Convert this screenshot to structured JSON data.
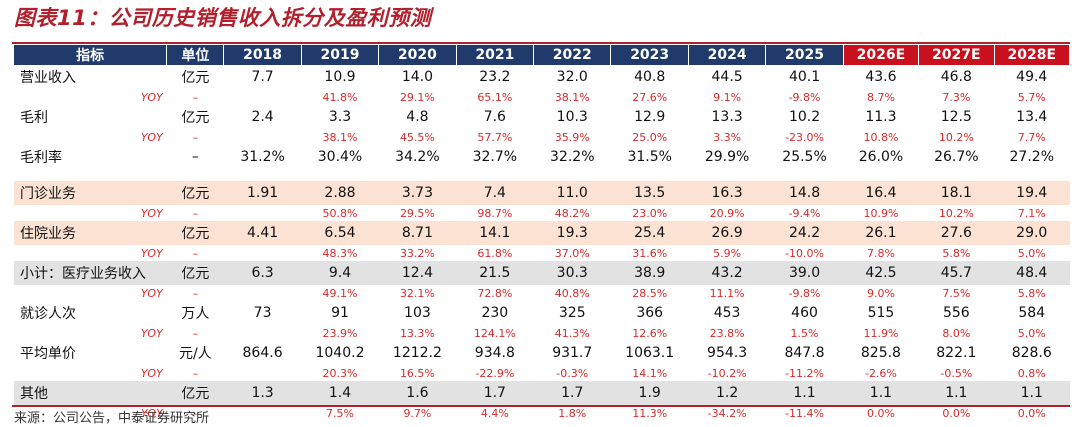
{
  "title": "图表11：公司历史销售收入拆分及盈利预测",
  "source": "来源：公司公告，中泰证券研究所",
  "header": {
    "indicator": "指标",
    "unit": "单位",
    "years": [
      "2018",
      "2019",
      "2020",
      "2021",
      "2022",
      "2023",
      "2024",
      "2025",
      "2026E",
      "2027E",
      "2028E"
    ]
  },
  "rows": {
    "revenue": {
      "label": "营业收入",
      "unit": "亿元",
      "values": [
        "7.7",
        "10.9",
        "14.0",
        "23.2",
        "32.0",
        "40.8",
        "44.5",
        "40.1",
        "43.6",
        "46.8",
        "49.4"
      ]
    },
    "revenue_yoy": {
      "label": "YOY",
      "unit": "–",
      "values": [
        "",
        "41.8%",
        "29.1%",
        "65.1%",
        "38.1%",
        "27.6%",
        "9.1%",
        "-9.8%",
        "8.7%",
        "7.3%",
        "5.7%"
      ]
    },
    "gross_profit": {
      "label": "毛利",
      "unit": "亿元",
      "values": [
        "2.4",
        "3.3",
        "4.8",
        "7.6",
        "10.3",
        "12.9",
        "13.3",
        "10.2",
        "11.3",
        "12.5",
        "13.4"
      ]
    },
    "gross_profit_yoy": {
      "label": "YOY",
      "unit": "–",
      "values": [
        "",
        "38.1%",
        "45.5%",
        "57.7%",
        "35.9%",
        "25.0%",
        "3.3%",
        "-23.0%",
        "10.8%",
        "10.2%",
        "7.7%"
      ]
    },
    "gross_margin": {
      "label": "毛利率",
      "unit": "–",
      "values": [
        "31.2%",
        "30.4%",
        "34.2%",
        "32.7%",
        "32.2%",
        "31.5%",
        "29.9%",
        "25.5%",
        "26.0%",
        "26.7%",
        "27.2%"
      ]
    },
    "outpatient": {
      "label": "门诊业务",
      "unit": "亿元",
      "values": [
        "1.91",
        "2.88",
        "3.73",
        "7.4",
        "11.0",
        "13.5",
        "16.3",
        "14.8",
        "16.4",
        "18.1",
        "19.4"
      ]
    },
    "outpatient_yoy": {
      "label": "YOY",
      "unit": "–",
      "values": [
        "",
        "50.8%",
        "29.5%",
        "98.7%",
        "48.2%",
        "23.0%",
        "20.9%",
        "-9.4%",
        "10.9%",
        "10.2%",
        "7.1%"
      ]
    },
    "inpatient": {
      "label": "住院业务",
      "unit": "亿元",
      "values": [
        "4.41",
        "6.54",
        "8.71",
        "14.1",
        "19.3",
        "25.4",
        "26.9",
        "24.2",
        "26.1",
        "27.6",
        "29.0"
      ]
    },
    "inpatient_yoy": {
      "label": "YOY",
      "unit": "–",
      "values": [
        "",
        "48.3%",
        "33.2%",
        "61.8%",
        "37.0%",
        "31.6%",
        "5.9%",
        "-10.0%",
        "7.8%",
        "5.8%",
        "5.0%"
      ]
    },
    "medical_subtotal": {
      "label": "小计：医疗业务收入",
      "unit": "亿元",
      "values": [
        "6.3",
        "9.4",
        "12.4",
        "21.5",
        "30.3",
        "38.9",
        "43.2",
        "39.0",
        "42.5",
        "45.7",
        "48.4"
      ]
    },
    "medical_subtotal_yoy": {
      "label": "YOY",
      "unit": "–",
      "values": [
        "",
        "49.1%",
        "32.1%",
        "72.8%",
        "40.8%",
        "28.5%",
        "11.1%",
        "-9.8%",
        "9.0%",
        "7.5%",
        "5.8%"
      ]
    },
    "visits": {
      "label": "就诊人次",
      "unit": "万人",
      "values": [
        "73",
        "91",
        "103",
        "230",
        "325",
        "366",
        "453",
        "460",
        "515",
        "556",
        "584"
      ]
    },
    "visits_yoy": {
      "label": "YOY",
      "unit": "–",
      "values": [
        "",
        "23.9%",
        "13.3%",
        "124.1%",
        "41.3%",
        "12.6%",
        "23.8%",
        "1.5%",
        "11.9%",
        "8.0%",
        "5.0%"
      ]
    },
    "avg_price": {
      "label": "平均单价",
      "unit": "元/人",
      "values": [
        "864.6",
        "1040.2",
        "1212.2",
        "934.8",
        "931.7",
        "1063.1",
        "954.3",
        "847.8",
        "825.8",
        "822.1",
        "828.6"
      ]
    },
    "avg_price_yoy": {
      "label": "YOY",
      "unit": "–",
      "values": [
        "",
        "20.3%",
        "16.5%",
        "-22.9%",
        "-0.3%",
        "14.1%",
        "-10.2%",
        "-11.2%",
        "-2.6%",
        "-0.5%",
        "0.8%"
      ]
    },
    "other": {
      "label": "其他",
      "unit": "亿元",
      "values": [
        "1.3",
        "1.4",
        "1.6",
        "1.7",
        "1.7",
        "1.9",
        "1.2",
        "1.1",
        "1.1",
        "1.1",
        "1.1"
      ]
    },
    "other_yoy": {
      "label": "YOY",
      "unit": "–",
      "values": [
        "",
        "7.5%",
        "9.7%",
        "4.4%",
        "1.8%",
        "11.3%",
        "-34.2%",
        "-11.4%",
        "0.0%",
        "0.0%",
        "0.0%"
      ]
    }
  },
  "colors": {
    "title_red": "#b3202d",
    "header_navy": "#1f3a6b",
    "forecast_red": "#c8101e",
    "yoy_red": "#d62b2b",
    "band_peach": "#fbe2d3",
    "band_gray": "#e2e2e2"
  }
}
